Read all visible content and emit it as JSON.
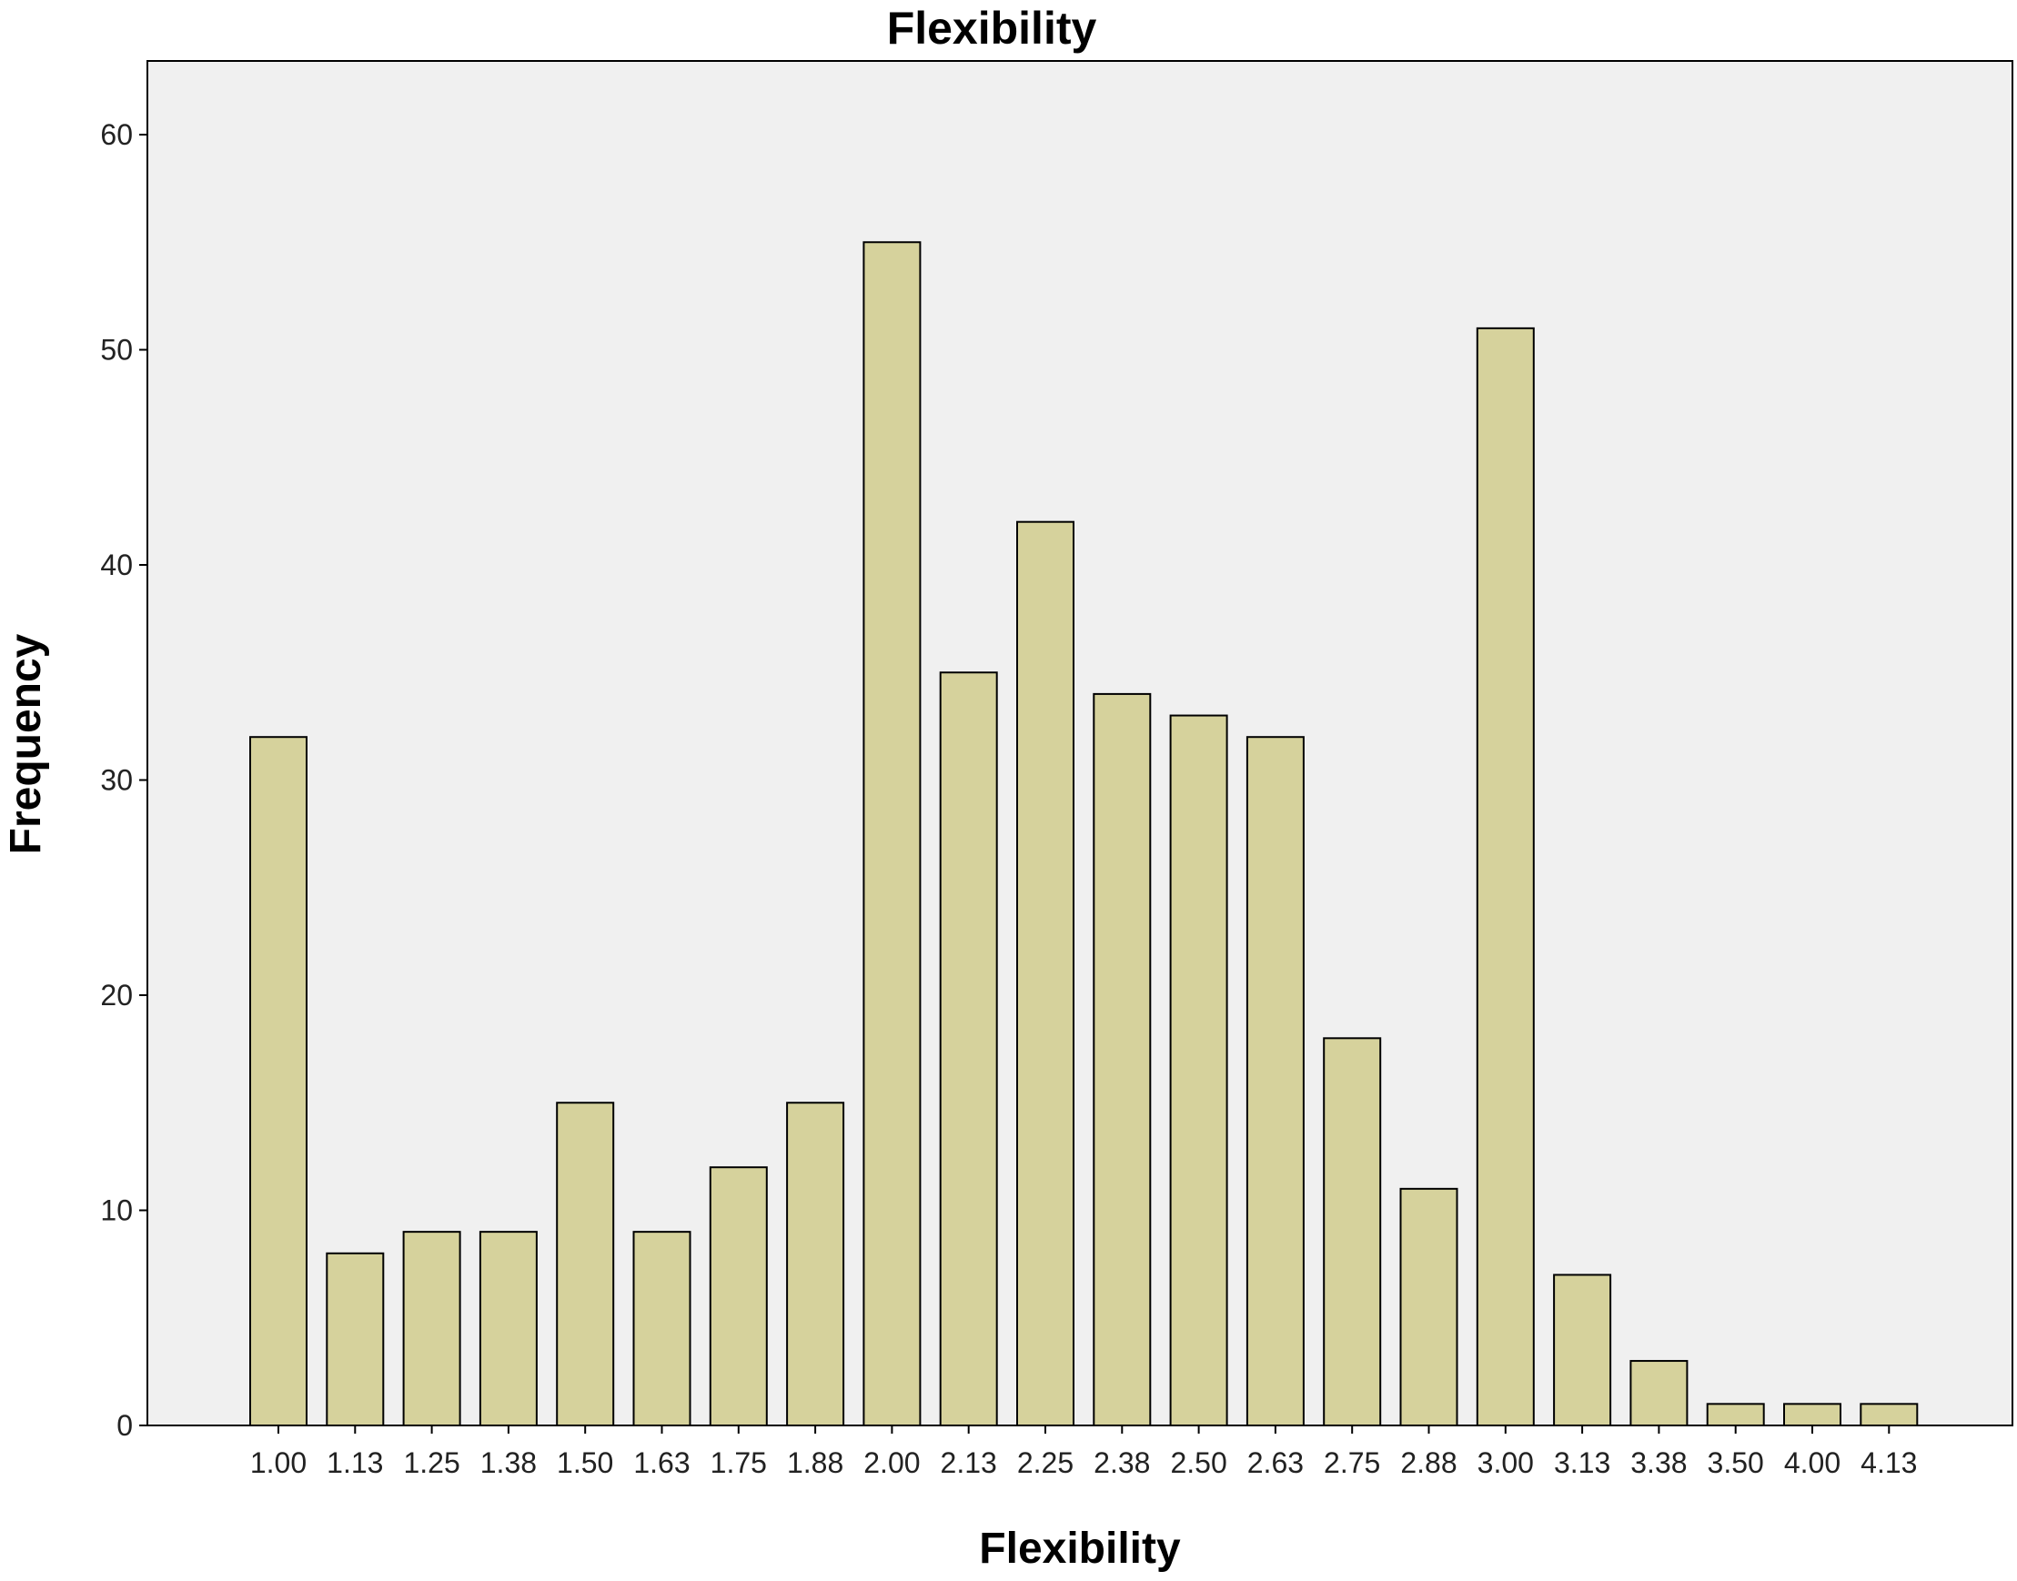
{
  "chart_data": {
    "type": "bar",
    "title": "Flexibility",
    "xlabel": "Flexibility",
    "ylabel": "Frequency",
    "categories": [
      "1.00",
      "1.13",
      "1.25",
      "1.38",
      "1.50",
      "1.63",
      "1.75",
      "1.88",
      "2.00",
      "2.13",
      "2.25",
      "2.38",
      "2.50",
      "2.63",
      "2.75",
      "2.88",
      "3.00",
      "3.13",
      "3.38",
      "3.50",
      "4.00",
      "4.13"
    ],
    "values": [
      32,
      8,
      9,
      9,
      15,
      9,
      12,
      15,
      55,
      35,
      42,
      34,
      33,
      32,
      18,
      11,
      51,
      7,
      3,
      1,
      1,
      1
    ],
    "yticks": [
      "0",
      "10",
      "20",
      "30",
      "40",
      "50",
      "60"
    ],
    "ylim": [
      0,
      60
    ],
    "grid": false,
    "legend": "none",
    "colors": {
      "bar_fill": "#d6d29c",
      "bar_stroke": "#000000",
      "plot_background": "#f0f0f0",
      "frame": "#000000"
    }
  }
}
